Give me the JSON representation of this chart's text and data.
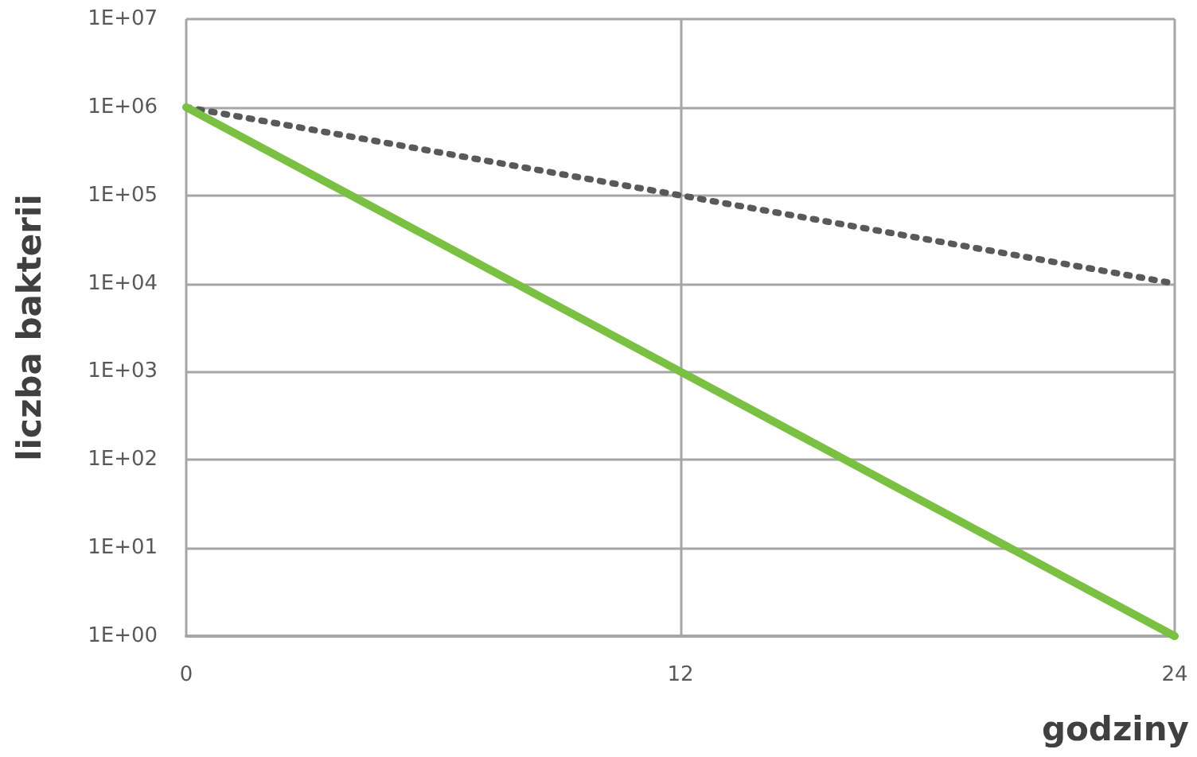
{
  "chart_data": {
    "type": "line",
    "xlabel": "godziny",
    "ylabel": "liczba bakterii",
    "log": "y",
    "grid": true,
    "marker": "none",
    "xlim": [
      0,
      24
    ],
    "xticks": [
      0,
      12,
      24
    ],
    "ylim": [
      1,
      10000000
    ],
    "yticks": [
      {
        "value": 1,
        "label": "1E+00"
      },
      {
        "value": 10,
        "label": "1E+01"
      },
      {
        "value": 100,
        "label": "1E+02"
      },
      {
        "value": 1000,
        "label": "1E+03"
      },
      {
        "value": 10000,
        "label": "1E+04"
      },
      {
        "value": 100000,
        "label": "1E+05"
      },
      {
        "value": 1000000,
        "label": "1E+06"
      },
      {
        "value": 10000000,
        "label": "1E+07"
      }
    ],
    "series": [
      {
        "color": "#595959",
        "line_style": "dotted",
        "x": [
          0,
          12,
          24
        ],
        "values": [
          1000000,
          100000,
          10000
        ]
      },
      {
        "color": "#7ac143",
        "line_style": "solid",
        "x": [
          0,
          12,
          24
        ],
        "values": [
          1000000,
          1000,
          1
        ]
      }
    ]
  }
}
